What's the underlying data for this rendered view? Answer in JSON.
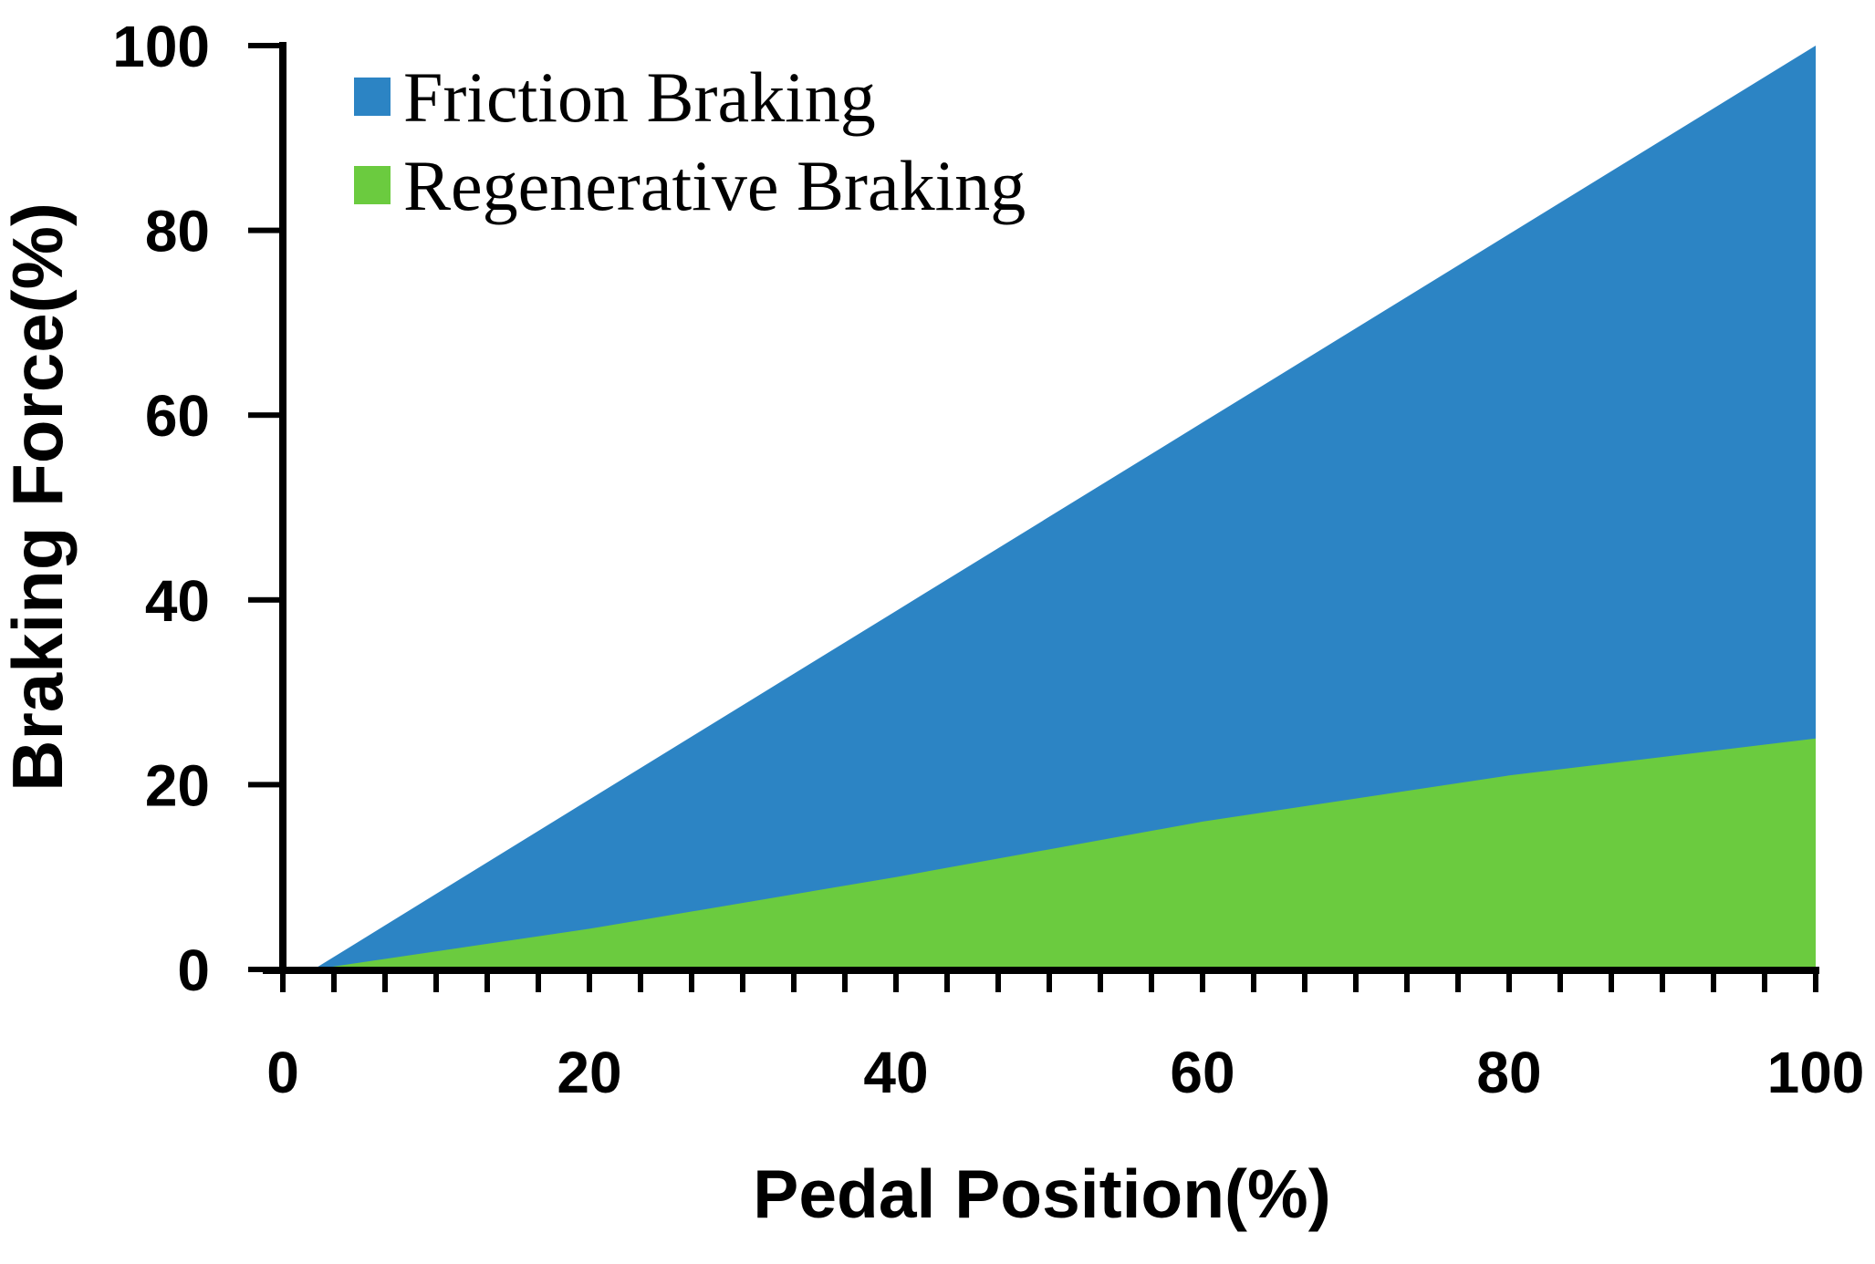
{
  "figure": {
    "x_axis_title": "Pedal Position(%)",
    "y_axis_title": "Braking Force(%)",
    "legend": {
      "position": "top-left",
      "items": [
        {
          "label": "Friction Braking",
          "color": "#2C84C4"
        },
        {
          "label": "Regenerative Braking",
          "color": "#6BCB3F"
        }
      ]
    },
    "colors": {
      "axis": "#000000",
      "text": "#000000",
      "background": "#ffffff",
      "friction_blue": "#2C84C4",
      "regen_green": "#6BCB3F"
    }
  },
  "chart_data": {
    "type": "area",
    "stacked": true,
    "title": "",
    "xlabel": "Pedal Position(%)",
    "ylabel": "Braking Force(%)",
    "xlim": [
      0,
      100
    ],
    "ylim": [
      0,
      100
    ],
    "x_ticks": [
      0,
      20,
      40,
      60,
      80,
      100
    ],
    "y_ticks": [
      0,
      20,
      40,
      60,
      80,
      100
    ],
    "x_minor_tick_count": 30,
    "grid": false,
    "legend_position": "top-left",
    "x": [
      0,
      2,
      20,
      40,
      60,
      80,
      100
    ],
    "series": [
      {
        "name": "Regenerative Braking",
        "color": "#6BCB3F",
        "values": [
          0,
          0,
          4.4,
          10.0,
          16.0,
          21.0,
          25.0
        ]
      },
      {
        "name": "Friction Braking",
        "color": "#2C84C4",
        "values": [
          0,
          0,
          14.0,
          28.8,
          43.2,
          58.6,
          75.0
        ]
      }
    ],
    "stacked_totals": [
      0,
      0,
      18.4,
      38.8,
      59.2,
      79.6,
      100
    ]
  }
}
